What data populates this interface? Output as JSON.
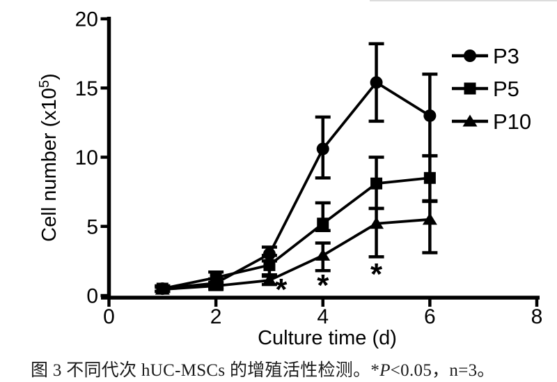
{
  "chart_data": {
    "type": "line",
    "title": "",
    "x": [
      1,
      2,
      3,
      4,
      5,
      6
    ],
    "xlabel": "Culture time (d)",
    "ylabel": "Cell number (x10⁵)",
    "ylabel_parts": {
      "pre": "Cell number (x10",
      "sup": "5",
      "post": ")"
    },
    "xlim": [
      0,
      8
    ],
    "ylim": [
      0,
      20
    ],
    "xticks": [
      0,
      2,
      4,
      6,
      8
    ],
    "yticks": [
      0,
      5,
      10,
      15,
      20
    ],
    "grid": false,
    "legend_position": "top-right",
    "error_bars": true,
    "line_color": "#000000",
    "series": [
      {
        "name": "P3",
        "marker": "circle",
        "values": [
          0.5,
          0.9,
          3.0,
          10.6,
          15.4,
          13.0
        ],
        "err_up": [
          0.2,
          0.3,
          0.5,
          2.3,
          2.8,
          3.0
        ],
        "err_down": [
          0.2,
          0.3,
          0.5,
          2.1,
          2.8,
          2.9
        ]
      },
      {
        "name": "P5",
        "marker": "square",
        "values": [
          0.5,
          1.3,
          2.2,
          5.2,
          8.1,
          8.5
        ],
        "err_up": [
          0.2,
          0.4,
          0.7,
          1.5,
          1.9,
          1.6
        ],
        "err_down": [
          0.2,
          0.4,
          0.7,
          0.5,
          1.8,
          1.7
        ]
      },
      {
        "name": "P10",
        "marker": "triangle",
        "values": [
          0.45,
          0.7,
          1.1,
          2.9,
          5.2,
          5.5
        ],
        "err_up": [
          0.15,
          0.25,
          0.3,
          0.9,
          1.1,
          1.35
        ],
        "err_down": [
          0.15,
          0.25,
          0.3,
          1.1,
          2.4,
          2.4
        ]
      }
    ],
    "annotations": [
      {
        "text": "*",
        "x": 3.22,
        "y": 0.55
      },
      {
        "text": "*",
        "x": 4.0,
        "y": 0.85
      },
      {
        "text": "*",
        "x": 5.0,
        "y": 1.65
      }
    ]
  },
  "caption": {
    "pre": "图 3 不同代次 hUC-MSCs 的增殖活性检测。*",
    "italic": "P",
    "post": "<0.05，n=3。"
  }
}
